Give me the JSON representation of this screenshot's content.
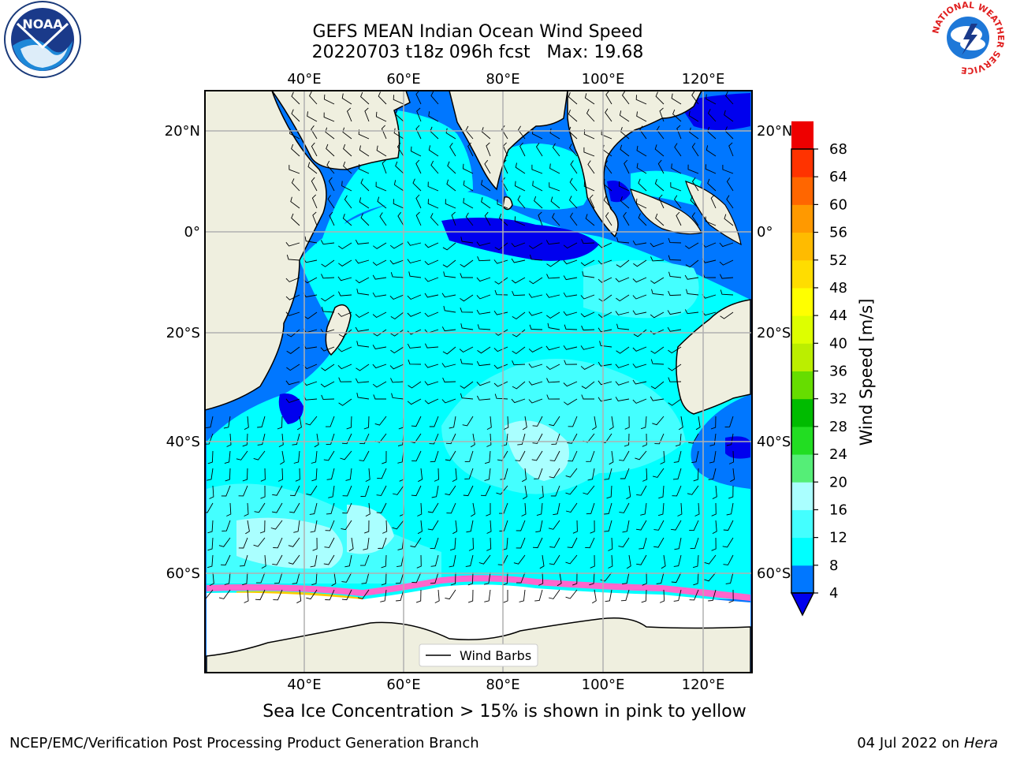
{
  "title": {
    "line1": "GEFS MEAN Indian Ocean Wind Speed",
    "line2": "20220703 t18z 096h fcst   Max: 19.68"
  },
  "map": {
    "lon_ticks": [
      "40°E",
      "60°E",
      "80°E",
      "100°E",
      "120°E"
    ],
    "lat_ticks": [
      "20°N",
      "0°",
      "20°S",
      "40°S",
      "60°S"
    ],
    "legend_label": "Wind Barbs",
    "colors": {
      "land": "#efefdf",
      "calm": "#0000ee",
      "band_4_8": "#0077ff",
      "band_8_12": "#00ffff",
      "band_12_16": "#44ffff",
      "band_16_20": "#aaffff",
      "ice_low": "#ff66cc",
      "ice_high": "#ffcc00"
    }
  },
  "colorbar": {
    "label": "Wind Speed [m/s]",
    "ticks": [
      "4",
      "8",
      "12",
      "16",
      "20",
      "24",
      "28",
      "32",
      "36",
      "40",
      "44",
      "48",
      "52",
      "56",
      "60",
      "64",
      "68"
    ],
    "colors": [
      "#0077ff",
      "#00ffff",
      "#44ffff",
      "#aaffff",
      "#55ee77",
      "#22dd22",
      "#00bb00",
      "#66dd00",
      "#bbee00",
      "#ddff00",
      "#ffff00",
      "#ffdd00",
      "#ffbb00",
      "#ff9900",
      "#ff6600",
      "#ff3300",
      "#ee0000"
    ],
    "under_color": "#0000ee"
  },
  "caption": "Sea Ice Concentration > 15% is shown in pink to yellow",
  "footer": {
    "left": "NCEP/EMC/Verification Post Processing Product Generation Branch",
    "date": "04 Jul 2022 on",
    "machine": "Hera"
  },
  "logos": {
    "left_text": "NOAA",
    "right_ring": "NATIONAL WEATHER SERVICE"
  }
}
